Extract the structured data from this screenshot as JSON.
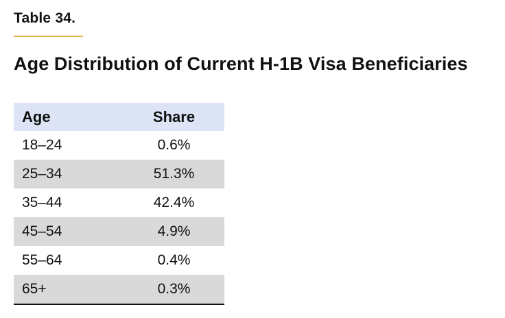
{
  "table_label": "Table 34.",
  "title": "Age Distribution of Current H-1B Visa Beneficiaries",
  "table": {
    "headers": [
      "Age",
      "Share"
    ],
    "rows": [
      {
        "age": "18–24",
        "share": "0.6%"
      },
      {
        "age": "25–34",
        "share": "51.3%"
      },
      {
        "age": "35–44",
        "share": "42.4%"
      },
      {
        "age": "45–54",
        "share": "4.9%"
      },
      {
        "age": "55–64",
        "share": "0.4%"
      },
      {
        "age": "65+",
        "share": "0.3%"
      }
    ]
  },
  "colors": {
    "header_bg": "#dde4f5",
    "stripe_bg": "#d9d9d9",
    "accent_rule": "#e2b34a"
  },
  "chart_data": {
    "type": "table",
    "title": "Age Distribution of Current H-1B Visa Beneficiaries",
    "columns": [
      "Age",
      "Share"
    ],
    "categories": [
      "18–24",
      "25–34",
      "35–44",
      "45–54",
      "55–64",
      "65+"
    ],
    "values": [
      0.6,
      51.3,
      42.4,
      4.9,
      0.4,
      0.3
    ],
    "unit": "%"
  }
}
